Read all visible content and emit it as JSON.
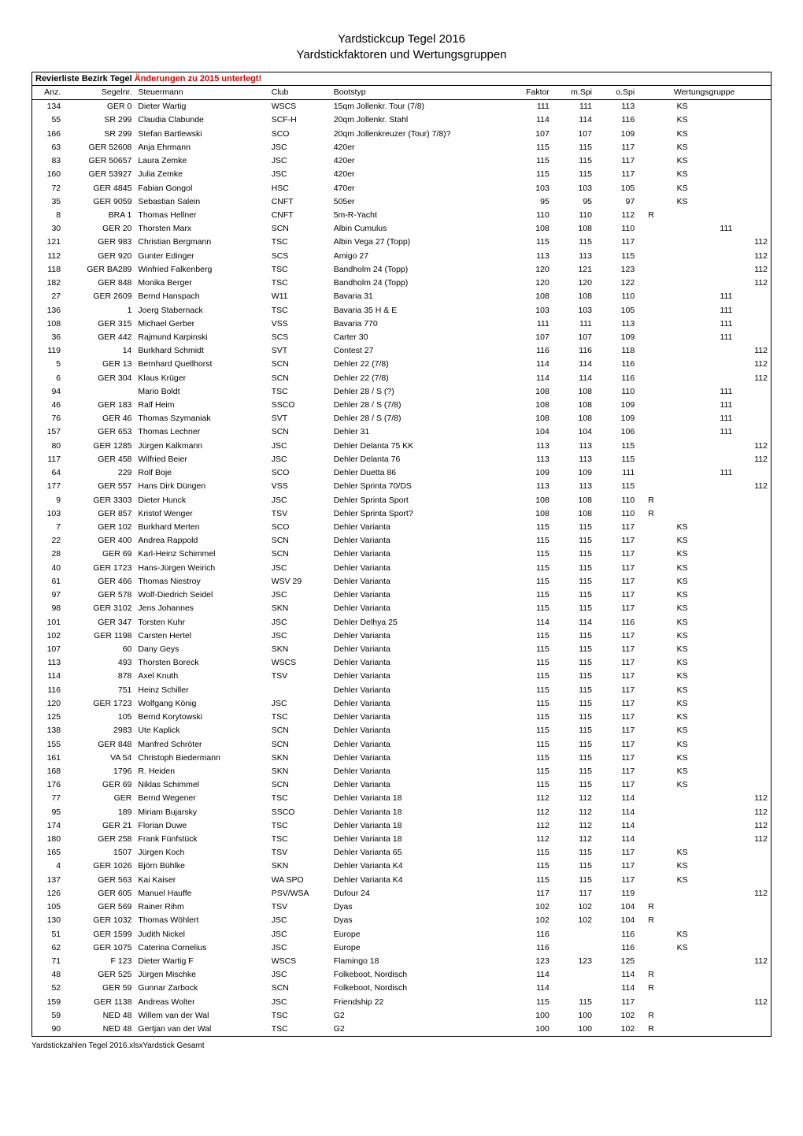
{
  "title_line1": "Yardstickcup Tegel 2016",
  "title_line2": "Yardstickfaktoren und Wertungsgruppen",
  "subheader_text": "Revierliste Bezirk Tegel",
  "subheader_changes": "Änderungen zu 2015 unterlegt!",
  "footer": "Yardstickzahlen Tegel 2016.xlsxYardstick Gesamt",
  "columns": {
    "anz": "Anz.",
    "segelnr": "Segelnr.",
    "steuermann": "Steuermann",
    "club": "Club",
    "bootstyp": "Bootstyp",
    "faktor": "Faktor",
    "mspi": "m.Spi",
    "ospi": "o.Spi",
    "wertungsgruppe": "Wertungsgruppe"
  },
  "rows": [
    {
      "anz": "134",
      "seg": "GER 0",
      "steu": "Dieter Wartig",
      "club": "WSCS",
      "boot": "15qm Jollenkr. Tour (7/8)",
      "fak": "111",
      "mspi": "111",
      "ospi": "113",
      "wg1": "",
      "wg2": "KS",
      "wg3": "",
      "wg4": ""
    },
    {
      "anz": "55",
      "seg": "SR 299",
      "steu": "Claudia Clabunde",
      "club": "SCF-H",
      "boot": "20qm Jollenkr. Stahl",
      "fak": "114",
      "mspi": "114",
      "ospi": "116",
      "wg1": "",
      "wg2": "KS",
      "wg3": "",
      "wg4": ""
    },
    {
      "anz": "166",
      "seg": "SR 299",
      "steu": "Stefan Bartlewski",
      "club": "SCO",
      "boot": "20qm Jollenkreuzer (Tour) 7/8)?",
      "fak": "107",
      "mspi": "107",
      "ospi": "109",
      "wg1": "",
      "wg2": "KS",
      "wg3": "",
      "wg4": ""
    },
    {
      "anz": "63",
      "seg": "GER 52608",
      "steu": "Anja Ehrmann",
      "club": "JSC",
      "boot": "420er",
      "fak": "115",
      "mspi": "115",
      "ospi": "117",
      "wg1": "",
      "wg2": "KS",
      "wg3": "",
      "wg4": ""
    },
    {
      "anz": "83",
      "seg": "GER 50657",
      "steu": "Laura Zemke",
      "club": "JSC",
      "boot": "420er",
      "fak": "115",
      "mspi": "115",
      "ospi": "117",
      "wg1": "",
      "wg2": "KS",
      "wg3": "",
      "wg4": ""
    },
    {
      "anz": "160",
      "seg": "GER 53927",
      "steu": "Julia Zemke",
      "club": "JSC",
      "boot": "420er",
      "fak": "115",
      "mspi": "115",
      "ospi": "117",
      "wg1": "",
      "wg2": "KS",
      "wg3": "",
      "wg4": ""
    },
    {
      "anz": "72",
      "seg": "GER 4845",
      "steu": "Fabian Gongol",
      "club": "HSC",
      "boot": "470er",
      "fak": "103",
      "mspi": "103",
      "ospi": "105",
      "wg1": "",
      "wg2": "KS",
      "wg3": "",
      "wg4": ""
    },
    {
      "anz": "35",
      "seg": "GER 9059",
      "steu": "Sebastian Salein",
      "club": "CNFT",
      "boot": "505er",
      "fak": "95",
      "mspi": "95",
      "ospi": "97",
      "wg1": "",
      "wg2": "KS",
      "wg3": "",
      "wg4": ""
    },
    {
      "anz": "8",
      "seg": "BRA 1",
      "steu": "Thomas Hellner",
      "club": "CNFT",
      "boot": "5m-R-Yacht",
      "fak": "110",
      "mspi": "110",
      "ospi": "112",
      "wg1": "R",
      "wg2": "",
      "wg3": "",
      "wg4": ""
    },
    {
      "anz": "30",
      "seg": "GER 20",
      "steu": "Thorsten Marx",
      "club": "SCN",
      "boot": "Albin Cumulus",
      "fak": "108",
      "mspi": "108",
      "ospi": "110",
      "wg1": "",
      "wg2": "",
      "wg3": "111",
      "wg4": ""
    },
    {
      "anz": "121",
      "seg": "GER 983",
      "steu": "Christian Bergmann",
      "club": "TSC",
      "boot": "Albin Vega 27 (Topp)",
      "fak": "115",
      "mspi": "115",
      "ospi": "117",
      "wg1": "",
      "wg2": "",
      "wg3": "",
      "wg4": "112"
    },
    {
      "anz": "112",
      "seg": "GER 920",
      "steu": "Gunter Edinger",
      "club": "SCS",
      "boot": "Amigo 27",
      "fak": "113",
      "mspi": "113",
      "ospi": "115",
      "wg1": "",
      "wg2": "",
      "wg3": "",
      "wg4": "112"
    },
    {
      "anz": "118",
      "seg": "GER BA289",
      "steu": "Winfried Falkenberg",
      "club": "TSC",
      "boot": "Bandholm 24 (Topp)",
      "fak": "120",
      "mspi": "121",
      "ospi": "123",
      "wg1": "",
      "wg2": "",
      "wg3": "",
      "wg4": "112"
    },
    {
      "anz": "182",
      "seg": "GER 848",
      "steu": "Monika Berger",
      "club": "TSC",
      "boot": "Bandholm 24 (Topp)",
      "fak": "120",
      "mspi": "120",
      "ospi": "122",
      "wg1": "",
      "wg2": "",
      "wg3": "",
      "wg4": "112"
    },
    {
      "anz": "27",
      "seg": "GER 2609",
      "steu": "Bernd Hanspach",
      "club": "W11",
      "boot": "Bavaria 31",
      "fak": "108",
      "mspi": "108",
      "ospi": "110",
      "wg1": "",
      "wg2": "",
      "wg3": "111",
      "wg4": ""
    },
    {
      "anz": "136",
      "seg": "1",
      "steu": "Joerg Stabernack",
      "club": "TSC",
      "boot": "Bavaria 35 H & E",
      "fak": "103",
      "mspi": "103",
      "ospi": "105",
      "wg1": "",
      "wg2": "",
      "wg3": "111",
      "wg4": ""
    },
    {
      "anz": "108",
      "seg": "GER 315",
      "steu": "Michael Gerber",
      "club": "VSS",
      "boot": "Bavaria 770",
      "fak": "111",
      "mspi": "111",
      "ospi": "113",
      "wg1": "",
      "wg2": "",
      "wg3": "111",
      "wg4": ""
    },
    {
      "anz": "36",
      "seg": "GER 442",
      "steu": "Rajmund Karpinski",
      "club": "SCS",
      "boot": "Carter 30",
      "fak": "107",
      "mspi": "107",
      "ospi": "109",
      "wg1": "",
      "wg2": "",
      "wg3": "111",
      "wg4": ""
    },
    {
      "anz": "119",
      "seg": "14",
      "steu": "Burkhard Schmidt",
      "club": "SVT",
      "boot": "Contest 27",
      "fak": "116",
      "mspi": "116",
      "ospi": "118",
      "wg1": "",
      "wg2": "",
      "wg3": "",
      "wg4": "112"
    },
    {
      "anz": "5",
      "seg": "GER 13",
      "steu": "Bernhard Quellhorst",
      "club": "SCN",
      "boot": "Dehler 22 (7/8)",
      "fak": "114",
      "mspi": "114",
      "ospi": "116",
      "wg1": "",
      "wg2": "",
      "wg3": "",
      "wg4": "112"
    },
    {
      "anz": "6",
      "seg": "GER 304",
      "steu": "Klaus Krüger",
      "club": "SCN",
      "boot": "Dehler 22 (7/8)",
      "fak": "114",
      "mspi": "114",
      "ospi": "116",
      "wg1": "",
      "wg2": "",
      "wg3": "",
      "wg4": "112"
    },
    {
      "anz": "94",
      "seg": "",
      "steu": "Mario Boldt",
      "club": "TSC",
      "boot": "Dehler 28 / S (?)",
      "fak": "108",
      "mspi": "108",
      "ospi": "110",
      "wg1": "",
      "wg2": "",
      "wg3": "111",
      "wg4": ""
    },
    {
      "anz": "46",
      "seg": "GER 183",
      "steu": "Ralf Heim",
      "club": "SSCO",
      "boot": "Dehler 28 / S (7/8)",
      "fak": "108",
      "mspi": "108",
      "ospi": "109",
      "wg1": "",
      "wg2": "",
      "wg3": "111",
      "wg4": ""
    },
    {
      "anz": "76",
      "seg": "GER 46",
      "steu": "Thomas Szymaniak",
      "club": "SVT",
      "boot": "Dehler 28 / S (7/8)",
      "fak": "108",
      "mspi": "108",
      "ospi": "109",
      "wg1": "",
      "wg2": "",
      "wg3": "111",
      "wg4": ""
    },
    {
      "anz": "157",
      "seg": "GER 653",
      "steu": "Thomas Lechner",
      "club": "SCN",
      "boot": "Dehler 31",
      "fak": "104",
      "mspi": "104",
      "ospi": "106",
      "wg1": "",
      "wg2": "",
      "wg3": "111",
      "wg4": ""
    },
    {
      "anz": "80",
      "seg": "GER 1285",
      "steu": "Jürgen Kalkmann",
      "club": "JSC",
      "boot": "Dehler Delanta 75 KK",
      "fak": "113",
      "mspi": "113",
      "ospi": "115",
      "wg1": "",
      "wg2": "",
      "wg3": "",
      "wg4": "112"
    },
    {
      "anz": "117",
      "seg": "GER 458",
      "steu": "Wilfried Beier",
      "club": "JSC",
      "boot": "Dehler Delanta 76",
      "fak": "113",
      "mspi": "113",
      "ospi": "115",
      "wg1": "",
      "wg2": "",
      "wg3": "",
      "wg4": "112"
    },
    {
      "anz": "64",
      "seg": "229",
      "steu": "Rolf Boje",
      "club": "SCO",
      "boot": "Dehler Duetta 86",
      "fak": "109",
      "mspi": "109",
      "ospi": "111",
      "wg1": "",
      "wg2": "",
      "wg3": "111",
      "wg4": ""
    },
    {
      "anz": "177",
      "seg": "GER 557",
      "steu": "Hans Dirk Düngen",
      "club": "VSS",
      "boot": "Dehler Sprinta 70/DS",
      "fak": "113",
      "mspi": "113",
      "ospi": "115",
      "wg1": "",
      "wg2": "",
      "wg3": "",
      "wg4": "112"
    },
    {
      "anz": "9",
      "seg": "GER 3303",
      "steu": "Dieter Hunck",
      "club": "JSC",
      "boot": "Dehler Sprinta Sport",
      "fak": "108",
      "mspi": "108",
      "ospi": "110",
      "wg1": "R",
      "wg2": "",
      "wg3": "",
      "wg4": ""
    },
    {
      "anz": "103",
      "seg": "GER 857",
      "steu": "Kristof Wenger",
      "club": "TSV",
      "boot": "Dehler Sprinta Sport?",
      "fak": "108",
      "mspi": "108",
      "ospi": "110",
      "wg1": "R",
      "wg2": "",
      "wg3": "",
      "wg4": ""
    },
    {
      "anz": "7",
      "seg": "GER 102",
      "steu": "Burkhard Merten",
      "club": "SCO",
      "boot": "Dehler Varianta",
      "fak": "115",
      "mspi": "115",
      "ospi": "117",
      "wg1": "",
      "wg2": "KS",
      "wg3": "",
      "wg4": ""
    },
    {
      "anz": "22",
      "seg": "GER 400",
      "steu": "Andrea Rappold",
      "club": "SCN",
      "boot": "Dehler Varianta",
      "fak": "115",
      "mspi": "115",
      "ospi": "117",
      "wg1": "",
      "wg2": "KS",
      "wg3": "",
      "wg4": ""
    },
    {
      "anz": "28",
      "seg": "GER 69",
      "steu": "Karl-Heinz Schimmel",
      "club": "SCN",
      "boot": "Dehler Varianta",
      "fak": "115",
      "mspi": "115",
      "ospi": "117",
      "wg1": "",
      "wg2": "KS",
      "wg3": "",
      "wg4": ""
    },
    {
      "anz": "40",
      "seg": "GER 1723",
      "steu": "Hans-Jürgen Weirich",
      "club": "JSC",
      "boot": "Dehler Varianta",
      "fak": "115",
      "mspi": "115",
      "ospi": "117",
      "wg1": "",
      "wg2": "KS",
      "wg3": "",
      "wg4": ""
    },
    {
      "anz": "61",
      "seg": "GER 466",
      "steu": "Thomas Niestroy",
      "club": "WSV 29",
      "boot": "Dehler Varianta",
      "fak": "115",
      "mspi": "115",
      "ospi": "117",
      "wg1": "",
      "wg2": "KS",
      "wg3": "",
      "wg4": ""
    },
    {
      "anz": "97",
      "seg": "GER 578",
      "steu": "Wolf-Diedrich Seidel",
      "club": "JSC",
      "boot": "Dehler Varianta",
      "fak": "115",
      "mspi": "115",
      "ospi": "117",
      "wg1": "",
      "wg2": "KS",
      "wg3": "",
      "wg4": ""
    },
    {
      "anz": "98",
      "seg": "GER 3102",
      "steu": "Jens Johannes",
      "club": "SKN",
      "boot": "Dehler Varianta",
      "fak": "115",
      "mspi": "115",
      "ospi": "117",
      "wg1": "",
      "wg2": "KS",
      "wg3": "",
      "wg4": ""
    },
    {
      "anz": "101",
      "seg": "GER 347",
      "steu": "Torsten Kuhr",
      "club": "JSC",
      "boot": "Dehler Delhya 25",
      "fak": "114",
      "mspi": "114",
      "ospi": "116",
      "wg1": "",
      "wg2": "KS",
      "wg3": "",
      "wg4": ""
    },
    {
      "anz": "102",
      "seg": "GER 1198",
      "steu": "Carsten Hertel",
      "club": "JSC",
      "boot": "Dehler Varianta",
      "fak": "115",
      "mspi": "115",
      "ospi": "117",
      "wg1": "",
      "wg2": "KS",
      "wg3": "",
      "wg4": ""
    },
    {
      "anz": "107",
      "seg": "60",
      "steu": "Dany Geys",
      "club": "SKN",
      "boot": "Dehler Varianta",
      "fak": "115",
      "mspi": "115",
      "ospi": "117",
      "wg1": "",
      "wg2": "KS",
      "wg3": "",
      "wg4": ""
    },
    {
      "anz": "113",
      "seg": "493",
      "steu": "Thorsten Boreck",
      "club": "WSCS",
      "boot": "Dehler Varianta",
      "fak": "115",
      "mspi": "115",
      "ospi": "117",
      "wg1": "",
      "wg2": "KS",
      "wg3": "",
      "wg4": ""
    },
    {
      "anz": "114",
      "seg": "878",
      "steu": "Axel Knuth",
      "club": "TSV",
      "boot": "Dehler Varianta",
      "fak": "115",
      "mspi": "115",
      "ospi": "117",
      "wg1": "",
      "wg2": "KS",
      "wg3": "",
      "wg4": ""
    },
    {
      "anz": "116",
      "seg": "751",
      "steu": "Heinz Schiller",
      "club": "",
      "boot": "Dehler Varianta",
      "fak": "115",
      "mspi": "115",
      "ospi": "117",
      "wg1": "",
      "wg2": "KS",
      "wg3": "",
      "wg4": ""
    },
    {
      "anz": "120",
      "seg": "GER 1723",
      "steu": "Wolfgang König",
      "club": "JSC",
      "boot": "Dehler Varianta",
      "fak": "115",
      "mspi": "115",
      "ospi": "117",
      "wg1": "",
      "wg2": "KS",
      "wg3": "",
      "wg4": ""
    },
    {
      "anz": "125",
      "seg": "105",
      "steu": "Bernd Korytowski",
      "club": "TSC",
      "boot": "Dehler Varianta",
      "fak": "115",
      "mspi": "115",
      "ospi": "117",
      "wg1": "",
      "wg2": "KS",
      "wg3": "",
      "wg4": ""
    },
    {
      "anz": "138",
      "seg": "2983",
      "steu": "Ute Kaplick",
      "club": "SCN",
      "boot": "Dehler Varianta",
      "fak": "115",
      "mspi": "115",
      "ospi": "117",
      "wg1": "",
      "wg2": "KS",
      "wg3": "",
      "wg4": ""
    },
    {
      "anz": "155",
      "seg": "GER 848",
      "steu": "Manfred Schröter",
      "club": "SCN",
      "boot": "Dehler Varianta",
      "fak": "115",
      "mspi": "115",
      "ospi": "117",
      "wg1": "",
      "wg2": "KS",
      "wg3": "",
      "wg4": ""
    },
    {
      "anz": "161",
      "seg": "VA 54",
      "steu": "Christoph Biedermann",
      "club": "SKN",
      "boot": "Dehler Varianta",
      "fak": "115",
      "mspi": "115",
      "ospi": "117",
      "wg1": "",
      "wg2": "KS",
      "wg3": "",
      "wg4": ""
    },
    {
      "anz": "168",
      "seg": "1796",
      "steu": "R. Heiden",
      "club": "SKN",
      "boot": "Dehler Varianta",
      "fak": "115",
      "mspi": "115",
      "ospi": "117",
      "wg1": "",
      "wg2": "KS",
      "wg3": "",
      "wg4": ""
    },
    {
      "anz": "176",
      "seg": "GER 69",
      "steu": "Niklas Schimmel",
      "club": "SCN",
      "boot": "Dehler Varianta",
      "fak": "115",
      "mspi": "115",
      "ospi": "117",
      "wg1": "",
      "wg2": "KS",
      "wg3": "",
      "wg4": ""
    },
    {
      "anz": "77",
      "seg": "GER",
      "steu": "Bernd Wegener",
      "club": "TSC",
      "boot": "Dehler Varianta 18",
      "fak": "112",
      "mspi": "112",
      "ospi": "114",
      "wg1": "",
      "wg2": "",
      "wg3": "",
      "wg4": "112"
    },
    {
      "anz": "95",
      "seg": "189",
      "steu": "Miriam Bujarsky",
      "club": "SSCO",
      "boot": "Dehler Varianta 18",
      "fak": "112",
      "mspi": "112",
      "ospi": "114",
      "wg1": "",
      "wg2": "",
      "wg3": "",
      "wg4": "112"
    },
    {
      "anz": "174",
      "seg": "GER 21",
      "steu": "Florian Duwe",
      "club": "TSC",
      "boot": "Dehler Varianta 18",
      "fak": "112",
      "mspi": "112",
      "ospi": "114",
      "wg1": "",
      "wg2": "",
      "wg3": "",
      "wg4": "112"
    },
    {
      "anz": "180",
      "seg": "GER 258",
      "steu": "Frank Fünfstück",
      "club": "TSC",
      "boot": "Dehler Varianta 18",
      "fak": "112",
      "mspi": "112",
      "ospi": "114",
      "wg1": "",
      "wg2": "",
      "wg3": "",
      "wg4": "112"
    },
    {
      "anz": "165",
      "seg": "1507",
      "steu": "Jürgen Koch",
      "club": "TSV",
      "boot": "Dehler Varianta 65",
      "fak": "115",
      "mspi": "115",
      "ospi": "117",
      "wg1": "",
      "wg2": "KS",
      "wg3": "",
      "wg4": ""
    },
    {
      "anz": "4",
      "seg": "GER 1026",
      "steu": "Björn Bühlke",
      "club": "SKN",
      "boot": "Dehler Varianta K4",
      "fak": "115",
      "mspi": "115",
      "ospi": "117",
      "wg1": "",
      "wg2": "KS",
      "wg3": "",
      "wg4": ""
    },
    {
      "anz": "137",
      "seg": "GER 563",
      "steu": "Kai Kaiser",
      "club": "WA SPO",
      "boot": "Dehler Varianta K4",
      "fak": "115",
      "mspi": "115",
      "ospi": "117",
      "wg1": "",
      "wg2": "KS",
      "wg3": "",
      "wg4": ""
    },
    {
      "anz": "126",
      "seg": "GER 605",
      "steu": "Manuel Hauffe",
      "club": "PSV/WSA",
      "boot": "Dufour 24",
      "fak": "117",
      "mspi": "117",
      "ospi": "119",
      "wg1": "",
      "wg2": "",
      "wg3": "",
      "wg4": "112"
    },
    {
      "anz": "105",
      "seg": "GER 569",
      "steu": "Rainer Rihm",
      "club": "TSV",
      "boot": "Dyas",
      "fak": "102",
      "mspi": "102",
      "ospi": "104",
      "wg1": "R",
      "wg2": "",
      "wg3": "",
      "wg4": ""
    },
    {
      "anz": "130",
      "seg": "GER 1032",
      "steu": "Thomas Wöhlert",
      "club": "JSC",
      "boot": "Dyas",
      "fak": "102",
      "mspi": "102",
      "ospi": "104",
      "wg1": "R",
      "wg2": "",
      "wg3": "",
      "wg4": ""
    },
    {
      "anz": "51",
      "seg": "GER 1599",
      "steu": "Judith Nickel",
      "club": "JSC",
      "boot": "Europe",
      "fak": "116",
      "mspi": "",
      "ospi": "116",
      "wg1": "",
      "wg2": "KS",
      "wg3": "",
      "wg4": ""
    },
    {
      "anz": "62",
      "seg": "GER 1075",
      "steu": "Caterina Cornelius",
      "club": "JSC",
      "boot": "Europe",
      "fak": "116",
      "mspi": "",
      "ospi": "116",
      "wg1": "",
      "wg2": "KS",
      "wg3": "",
      "wg4": ""
    },
    {
      "anz": "71",
      "seg": "F 123",
      "steu": "Dieter Wartig F",
      "club": "WSCS",
      "boot": "Flamingo 18",
      "fak": "123",
      "mspi": "123",
      "ospi": "125",
      "wg1": "",
      "wg2": "",
      "wg3": "",
      "wg4": "112"
    },
    {
      "anz": "48",
      "seg": "GER 525",
      "steu": "Jürgen Mischke",
      "club": "JSC",
      "boot": "Folkeboot, Nordisch",
      "fak": "114",
      "mspi": "",
      "ospi": "114",
      "wg1": "R",
      "wg2": "",
      "wg3": "",
      "wg4": ""
    },
    {
      "anz": "52",
      "seg": "GER 59",
      "steu": "Gunnar Zarbock",
      "club": "SCN",
      "boot": "Folkeboot, Nordisch",
      "fak": "114",
      "mspi": "",
      "ospi": "114",
      "wg1": "R",
      "wg2": "",
      "wg3": "",
      "wg4": ""
    },
    {
      "anz": "159",
      "seg": "GER 1138",
      "steu": "Andreas Wolter",
      "club": "JSC",
      "boot": "Friendship 22",
      "fak": "115",
      "mspi": "115",
      "ospi": "117",
      "wg1": "",
      "wg2": "",
      "wg3": "",
      "wg4": "112"
    },
    {
      "anz": "59",
      "seg": "NED 48",
      "steu": "Willem van der Wal",
      "club": "TSC",
      "boot": "G2",
      "fak": "100",
      "mspi": "100",
      "ospi": "102",
      "wg1": "R",
      "wg2": "",
      "wg3": "",
      "wg4": ""
    },
    {
      "anz": "90",
      "seg": "NED 48",
      "steu": "Gertjan van der Wal",
      "club": "TSC",
      "boot": "G2",
      "fak": "100",
      "mspi": "100",
      "ospi": "102",
      "wg1": "R",
      "wg2": "",
      "wg3": "",
      "wg4": ""
    }
  ]
}
